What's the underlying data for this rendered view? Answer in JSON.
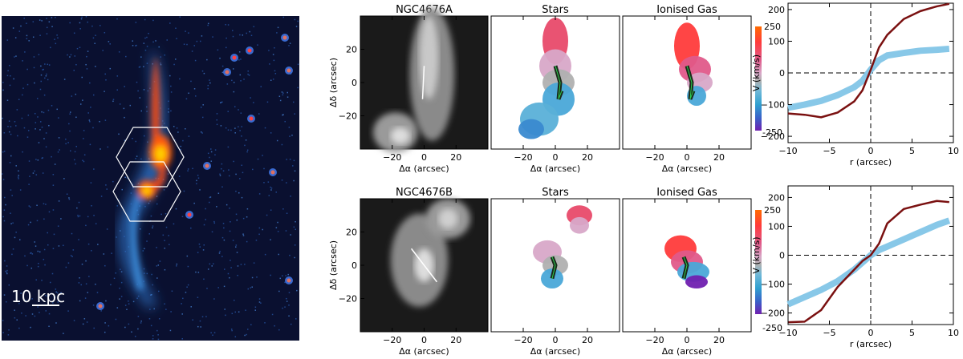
{
  "scale_label": "10 kpc",
  "rows": [
    {
      "galaxy": "NGC4676A",
      "stars_title": "Stars",
      "gas_title": "Ionised Gas",
      "y_axis_label": "Δδ (arcsec)",
      "x_axis_label": "Δα (arcsec)",
      "map_x_ticks": [
        "−20",
        "0",
        "20"
      ],
      "map_y_ticks": [
        "20",
        "0",
        "−20"
      ]
    },
    {
      "galaxy": "NGC4676B",
      "stars_title": "Stars",
      "gas_title": "Ionised Gas",
      "y_axis_label": "Δδ (arcsec)",
      "x_axis_label": "Δα (arcsec)",
      "map_x_ticks": [
        "−20",
        "0",
        "20"
      ],
      "map_y_ticks": [
        "20",
        "0",
        "−20"
      ]
    }
  ],
  "colorbar": {
    "max_label": "250",
    "min_label": "-250",
    "stops": [
      "#ff6a00",
      "#ff3b3b",
      "#e05a8a",
      "#d8a8c8",
      "#b0b0b0",
      "#70b8d8",
      "#30a0d0",
      "#3a60c8",
      "#7020b0"
    ]
  },
  "chart_data": [
    {
      "type": "line",
      "xlabel": "r (arcsec)",
      "ylabel": "V (km/s)",
      "xlim": [
        -10,
        10
      ],
      "ylim": [
        -220,
        220
      ],
      "x_ticks": [
        -10,
        -5,
        0,
        5,
        10
      ],
      "y_ticks": [
        -200,
        -100,
        0,
        100,
        200
      ],
      "series": [
        {
          "color": "#7a1010",
          "x": [
            -10,
            -8,
            -6,
            -4,
            -2,
            -1,
            0,
            1,
            2,
            4,
            6,
            8,
            9.5
          ],
          "y": [
            -128,
            -132,
            -140,
            -125,
            -90,
            -55,
            10,
            80,
            120,
            170,
            195,
            210,
            218
          ]
        },
        {
          "color": "#88c8e8",
          "x": [
            -10,
            -8,
            -6,
            -4,
            -2,
            -1,
            0,
            1,
            2,
            4,
            6,
            8,
            9.5
          ],
          "y": [
            -110,
            -100,
            -88,
            -70,
            -45,
            -25,
            10,
            40,
            55,
            63,
            70,
            73,
            76
          ]
        }
      ]
    },
    {
      "type": "line",
      "xlabel": "r (arcsec)",
      "ylabel": "V (km/s)",
      "xlim": [
        -10,
        10
      ],
      "ylim": [
        -240,
        240
      ],
      "x_ticks": [
        -10,
        -5,
        0,
        5,
        10
      ],
      "y_ticks": [
        -200,
        -100,
        0,
        100,
        200
      ],
      "series": [
        {
          "color": "#7a1010",
          "x": [
            -10,
            -8,
            -6,
            -4,
            -2,
            -1,
            0,
            1,
            2,
            4,
            6,
            8,
            9.5
          ],
          "y": [
            -232,
            -230,
            -190,
            -110,
            -50,
            -20,
            0,
            40,
            110,
            160,
            175,
            188,
            184
          ]
        },
        {
          "color": "#88c8e8",
          "x": [
            -10,
            -8,
            -6,
            -4,
            -2,
            -1,
            0,
            1,
            2,
            4,
            6,
            8,
            9.5
          ],
          "y": [
            -170,
            -145,
            -120,
            -90,
            -50,
            -25,
            0,
            18,
            30,
            55,
            80,
            105,
            120
          ]
        }
      ]
    }
  ]
}
